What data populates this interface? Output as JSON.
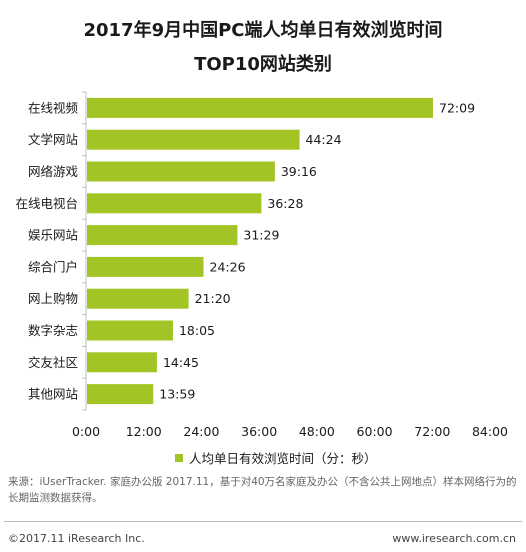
{
  "header": {
    "title_line1": "2017年9月中国PC端人均单日有效浏览时间",
    "title_line2": "TOP10网站类别"
  },
  "legend": {
    "label": "人均单日有效浏览时间（分：秒）"
  },
  "source_note": "来源：iUserTracker. 家庭办公版 2017.11，基于对40万名家庭及办公（不含公共上网地点）样本网络行为的长期监测数据获得。",
  "footer": {
    "copyright": "©2017.11 iResearch Inc.",
    "website": "www.iresearch.com.cn"
  },
  "colors": {
    "bar": "#a3c425",
    "axis": "#bfbfbf"
  },
  "chart_data": {
    "type": "bar",
    "orientation": "horizontal",
    "title": "2017年9月中国PC端人均单日有效浏览时间 TOP10网站类别",
    "categories": [
      "在线视频",
      "文学网站",
      "网络游戏",
      "在线电视台",
      "娱乐网站",
      "综合门户",
      "网上购物",
      "数字杂志",
      "交友社区",
      "其他网站"
    ],
    "series": [
      {
        "name": "人均单日有效浏览时间（分：秒）",
        "values": [
          72.15,
          44.4,
          39.2667,
          36.4667,
          31.4833,
          24.4333,
          21.3333,
          18.0833,
          14.75,
          13.9833
        ],
        "labels": [
          "72:09",
          "44:24",
          "39:16",
          "36:28",
          "31:29",
          "24:26",
          "21:20",
          "18:05",
          "14:45",
          "13:59"
        ]
      }
    ],
    "x_ticks": [
      "0:00",
      "12:00",
      "24:00",
      "36:00",
      "48:00",
      "60:00",
      "72:00",
      "84:00"
    ],
    "xlim": [
      0,
      84
    ],
    "grid": false,
    "legend_position": "bottom"
  }
}
